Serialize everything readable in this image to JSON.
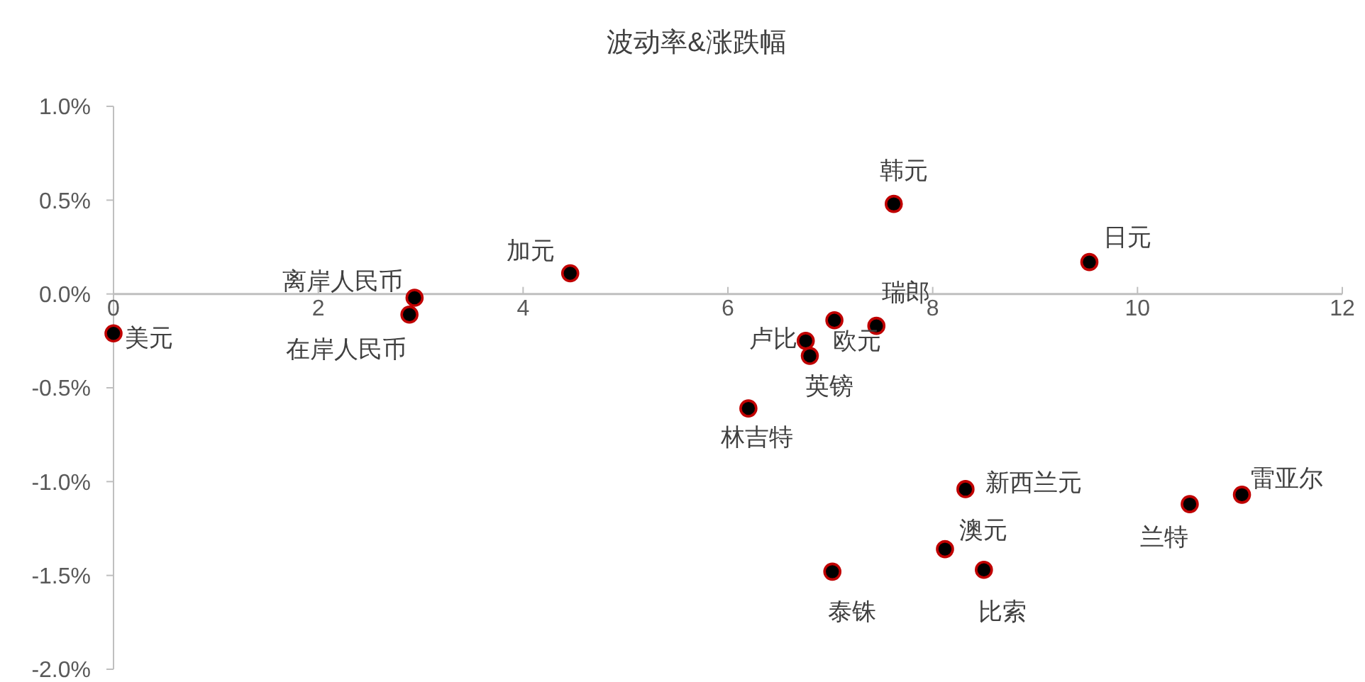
{
  "chart_data": {
    "type": "scatter",
    "title": "波动率&涨跌幅",
    "marker": "circle",
    "x": [
      0,
      2.94,
      2.89,
      4.46,
      7.62,
      9.53,
      7.45,
      7.04,
      6.76,
      6.8,
      6.2,
      8.32,
      8.12,
      8.5,
      7.02,
      10.51,
      11.02
    ],
    "series": [
      {
        "color": "#000000",
        "values": [
          -0.21,
          -0.02,
          -0.11,
          0.11,
          0.48,
          0.17,
          -0.17,
          -0.14,
          -0.25,
          -0.33,
          -0.61,
          -1.04,
          -1.36,
          -1.47,
          -1.48,
          -1.12,
          -1.07
        ]
      }
    ],
    "annotations": [
      {
        "text": "美元",
        "x": 0,
        "y": -0.21
      },
      {
        "text": "离岸人民币",
        "x": 2.94,
        "y": -0.02
      },
      {
        "text": "在岸人民币",
        "x": 2.89,
        "y": -0.11
      },
      {
        "text": "加元",
        "x": 4.46,
        "y": 0.11
      },
      {
        "text": "韩元",
        "x": 7.62,
        "y": 0.48
      },
      {
        "text": "日元",
        "x": 9.53,
        "y": 0.17
      },
      {
        "text": "瑞郎",
        "x": 7.45,
        "y": -0.17
      },
      {
        "text": "欧元",
        "x": 7.04,
        "y": -0.14
      },
      {
        "text": "卢比",
        "x": 6.76,
        "y": -0.25
      },
      {
        "text": "英镑",
        "x": 6.8,
        "y": -0.33
      },
      {
        "text": "林吉特",
        "x": 6.2,
        "y": -0.61
      },
      {
        "text": "新西兰元",
        "x": 8.32,
        "y": -1.04
      },
      {
        "text": "澳元",
        "x": 8.12,
        "y": -1.36
      },
      {
        "text": "比索",
        "x": 8.5,
        "y": -1.47
      },
      {
        "text": "泰铢",
        "x": 7.02,
        "y": -1.48
      },
      {
        "text": "兰特",
        "x": 10.51,
        "y": -1.12
      },
      {
        "text": "雷亚尔",
        "x": 11.02,
        "y": -1.07
      }
    ],
    "xlim": [
      0,
      12
    ],
    "xticks": [
      0,
      2,
      4,
      6,
      8,
      10,
      12
    ],
    "ylim": [
      -2,
      1
    ],
    "yticks": [
      {
        "value": -2,
        "label": "-2.0%"
      },
      {
        "value": -1.5,
        "label": "-1.5%"
      },
      {
        "value": -1,
        "label": "-1.0%"
      },
      {
        "value": -0.5,
        "label": "-0.5%"
      },
      {
        "value": 0,
        "label": "0.0%"
      },
      {
        "value": 0.5,
        "label": "0.5%"
      },
      {
        "value": 1,
        "label": "1.0%"
      }
    ]
  }
}
